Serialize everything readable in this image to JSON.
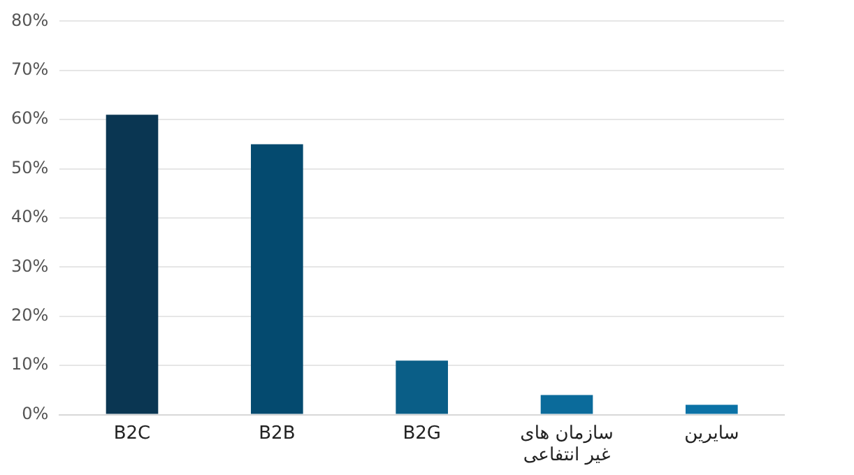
{
  "chart_data": {
    "type": "bar",
    "categories": [
      "B2C",
      "B2B",
      "B2G",
      "سازمان های غیر انتفاعی",
      "سایرین"
    ],
    "values": [
      61,
      55,
      11,
      4,
      2
    ],
    "colors": [
      "#0a3652",
      "#044a6f",
      "#0a5e87",
      "#0b6b9b",
      "#0b72a6"
    ],
    "ylim": [
      0,
      80
    ],
    "yticks": [
      {
        "value": 0,
        "label": "0%"
      },
      {
        "value": 10,
        "label": "10%"
      },
      {
        "value": 20,
        "label": "20%"
      },
      {
        "value": 30,
        "label": "30%"
      },
      {
        "value": 40,
        "label": "40%"
      },
      {
        "value": 50,
        "label": "50%"
      },
      {
        "value": 60,
        "label": "60%"
      },
      {
        "value": 70,
        "label": "70%"
      },
      {
        "value": 80,
        "label": "80%"
      }
    ],
    "grid": "y"
  }
}
